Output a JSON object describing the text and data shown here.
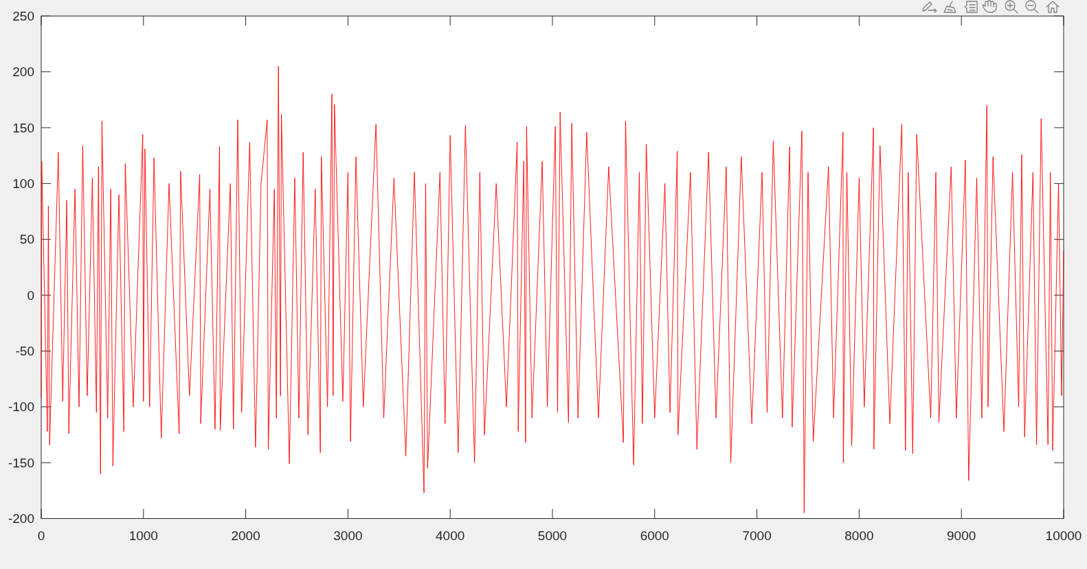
{
  "chart_data": {
    "type": "line",
    "line_style": "solid",
    "x": [
      0,
      5,
      60,
      70,
      82,
      167,
      210,
      250,
      270,
      330,
      370,
      406,
      450,
      500,
      540,
      560,
      580,
      594,
      650,
      680,
      701,
      760,
      808,
      822,
      900,
      993,
      1000,
      1014,
      1060,
      1103,
      1174,
      1250,
      1349,
      1363,
      1450,
      1550,
      1560,
      1650,
      1700,
      1744,
      1751,
      1850,
      1880,
      1922,
      1960,
      2039,
      2096,
      2150,
      2210,
      2221,
      2280,
      2300,
      2320,
      2340,
      2349,
      2427,
      2480,
      2520,
      2562,
      2609,
      2680,
      2730,
      2740,
      2800,
      2843,
      2855,
      2868,
      2950,
      3000,
      3025,
      3078,
      3150,
      3274,
      3350,
      3450,
      3566,
      3650,
      3744,
      3760,
      3779,
      3900,
      3950,
      4000,
      4078,
      4149,
      4238,
      4290,
      4335,
      4450,
      4550,
      4655,
      4665,
      4720,
      4737,
      4747,
      4800,
      4900,
      4950,
      5028,
      5050,
      5075,
      5157,
      5189,
      5250,
      5335,
      5450,
      5550,
      5694,
      5715,
      5794,
      5850,
      5880,
      5918,
      6000,
      6100,
      6150,
      6221,
      6228,
      6350,
      6413,
      6527,
      6600,
      6700,
      6744,
      6847,
      6950,
      7050,
      7100,
      7160,
      7250,
      7320,
      7345,
      7440,
      7462,
      7500,
      7551,
      7700,
      7750,
      7842,
      7845,
      7880,
      7927,
      8000,
      8050,
      8140,
      8144,
      8204,
      8300,
      8417,
      8453,
      8480,
      8524,
      8563,
      8700,
      8750,
      8780,
      8900,
      8950,
      9039,
      9071,
      9150,
      9200,
      9249,
      9260,
      9309,
      9416,
      9500,
      9560,
      9590,
      9618,
      9700,
      9735,
      9780,
      9847,
      9870,
      9893,
      9950,
      9980,
      10000
    ],
    "series": [
      {
        "color": "#ff0000",
        "values": [
          -92,
          120,
          -122,
          80,
          -134,
          128,
          -95,
          85,
          -124,
          95,
          -100,
          134,
          -90,
          105,
          -105,
          115,
          -160,
          156,
          -110,
          95,
          -153,
          90,
          -122,
          118,
          -100,
          144,
          -95,
          131,
          -100,
          123,
          -128,
          100,
          -124,
          111,
          -90,
          108,
          -115,
          95,
          -120,
          133,
          -121,
          100,
          -120,
          157,
          -105,
          137,
          -136,
          100,
          157,
          -138,
          95,
          -110,
          205,
          -90,
          162,
          -151,
          105,
          -110,
          128,
          -125,
          95,
          -141,
          124,
          -100,
          180,
          -90,
          171,
          -95,
          110,
          -131,
          124,
          -100,
          153,
          -110,
          105,
          -144,
          110,
          -177,
          100,
          -155,
          110,
          -115,
          143,
          -141,
          152,
          -150,
          110,
          -125,
          100,
          -100,
          137,
          -122,
          120,
          -132,
          151,
          -110,
          120,
          -100,
          151,
          -105,
          164,
          -114,
          154,
          -110,
          146,
          -110,
          115,
          -132,
          156,
          -152,
          110,
          -115,
          135,
          -110,
          100,
          -105,
          129,
          -125,
          110,
          -138,
          128,
          -110,
          115,
          -150,
          124,
          -115,
          110,
          -105,
          138,
          -110,
          133,
          -118,
          147,
          -195,
          110,
          -131,
          115,
          -110,
          146,
          -150,
          110,
          -135,
          105,
          -100,
          150,
          -138,
          134,
          -115,
          153,
          -139,
          110,
          -142,
          144,
          -110,
          110,
          -114,
          115,
          -110,
          121,
          -166,
          105,
          -110,
          170,
          -100,
          124,
          -122,
          110,
          -100,
          126,
          -127,
          110,
          -134,
          158,
          -134,
          110,
          -139,
          100,
          -90,
          40
        ]
      }
    ],
    "xlim": [
      0,
      10000
    ],
    "ylim": [
      -200,
      250
    ],
    "xticks": [
      0,
      1000,
      2000,
      3000,
      4000,
      5000,
      6000,
      7000,
      8000,
      9000,
      10000
    ],
    "yticks": [
      -200,
      -150,
      -100,
      -50,
      0,
      50,
      100,
      150,
      200,
      250
    ]
  }
}
